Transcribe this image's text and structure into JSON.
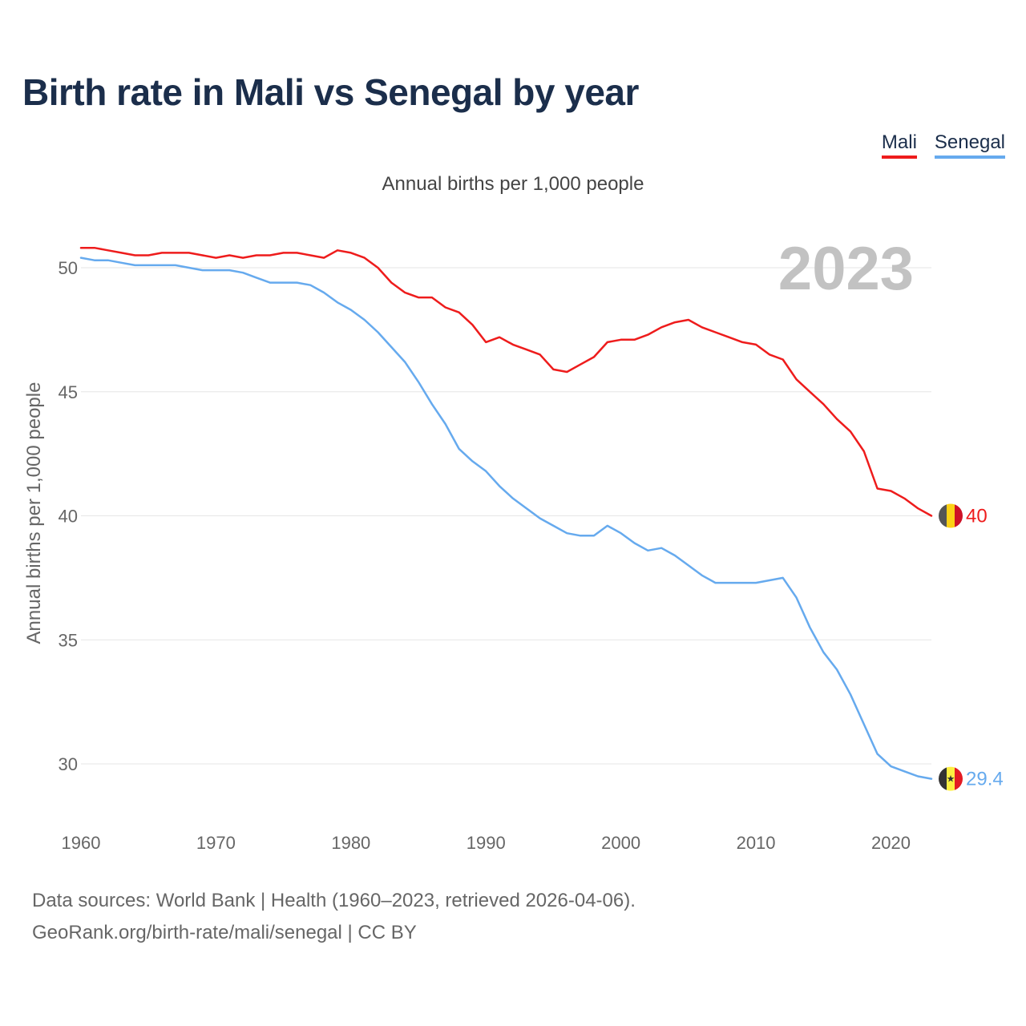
{
  "title": "Birth rate in Mali vs Senegal by year",
  "legend": [
    {
      "name": "Mali",
      "color": "#ee1c1c"
    },
    {
      "name": "Senegal",
      "color": "#66aaee"
    }
  ],
  "footer": {
    "line1": "Data sources: World Bank | Health (1960–2023, retrieved 2026-04-06).",
    "line2": "GeoRank.org/birth-rate/mali/senegal | CC BY"
  },
  "colors": {
    "mali": "#ee1c1c",
    "senegal": "#66aaee",
    "grid": "#e6e6e6",
    "title": "#1b2e4b"
  },
  "icons": {
    "mali_flag": "mali-flag-icon",
    "senegal_flag": "senegal-flag-icon"
  },
  "chart_data": {
    "type": "line",
    "title": "Annual births per 1,000 people",
    "xlabel": "",
    "ylabel": "Annual births per 1,000 people",
    "year_label": "2023",
    "xlim": [
      1960,
      2023
    ],
    "ylim": [
      28,
      52
    ],
    "x_ticks": [
      1960,
      1970,
      1980,
      1990,
      2000,
      2010,
      2020
    ],
    "y_ticks": [
      30,
      35,
      40,
      45,
      50
    ],
    "grid": true,
    "legend_position": "top-right",
    "x": [
      1960,
      1961,
      1962,
      1963,
      1964,
      1965,
      1966,
      1967,
      1968,
      1969,
      1970,
      1971,
      1972,
      1973,
      1974,
      1975,
      1976,
      1977,
      1978,
      1979,
      1980,
      1981,
      1982,
      1983,
      1984,
      1985,
      1986,
      1987,
      1988,
      1989,
      1990,
      1991,
      1992,
      1993,
      1994,
      1995,
      1996,
      1997,
      1998,
      1999,
      2000,
      2001,
      2002,
      2003,
      2004,
      2005,
      2006,
      2007,
      2008,
      2009,
      2010,
      2011,
      2012,
      2013,
      2014,
      2015,
      2016,
      2017,
      2018,
      2019,
      2020,
      2021,
      2022,
      2023
    ],
    "series": [
      {
        "name": "Mali",
        "end_label": "40",
        "values": [
          50.8,
          50.8,
          50.7,
          50.6,
          50.5,
          50.5,
          50.6,
          50.6,
          50.6,
          50.5,
          50.4,
          50.5,
          50.4,
          50.5,
          50.5,
          50.6,
          50.6,
          50.5,
          50.4,
          50.7,
          50.6,
          50.4,
          50.0,
          49.4,
          49.0,
          48.8,
          48.8,
          48.4,
          48.2,
          47.7,
          47.0,
          47.2,
          46.9,
          46.7,
          46.5,
          45.9,
          45.8,
          46.1,
          46.4,
          47.0,
          47.1,
          47.1,
          47.3,
          47.6,
          47.8,
          47.9,
          47.6,
          47.4,
          47.2,
          47.0,
          46.9,
          46.5,
          46.3,
          45.5,
          45.0,
          44.5,
          43.9,
          43.4,
          42.6,
          41.1,
          41.0,
          40.7,
          40.3,
          40.0
        ]
      },
      {
        "name": "Senegal",
        "end_label": "29.4",
        "values": [
          50.4,
          50.3,
          50.3,
          50.2,
          50.1,
          50.1,
          50.1,
          50.1,
          50.0,
          49.9,
          49.9,
          49.9,
          49.8,
          49.6,
          49.4,
          49.4,
          49.4,
          49.3,
          49.0,
          48.6,
          48.3,
          47.9,
          47.4,
          46.8,
          46.2,
          45.4,
          44.5,
          43.7,
          42.7,
          42.2,
          41.8,
          41.2,
          40.7,
          40.3,
          39.9,
          39.6,
          39.3,
          39.2,
          39.2,
          39.6,
          39.3,
          38.9,
          38.6,
          38.7,
          38.4,
          38.0,
          37.6,
          37.3,
          37.3,
          37.3,
          37.3,
          37.4,
          37.5,
          36.7,
          35.5,
          34.5,
          33.8,
          32.8,
          31.6,
          30.4,
          29.9,
          29.7,
          29.5,
          29.4
        ]
      }
    ]
  }
}
